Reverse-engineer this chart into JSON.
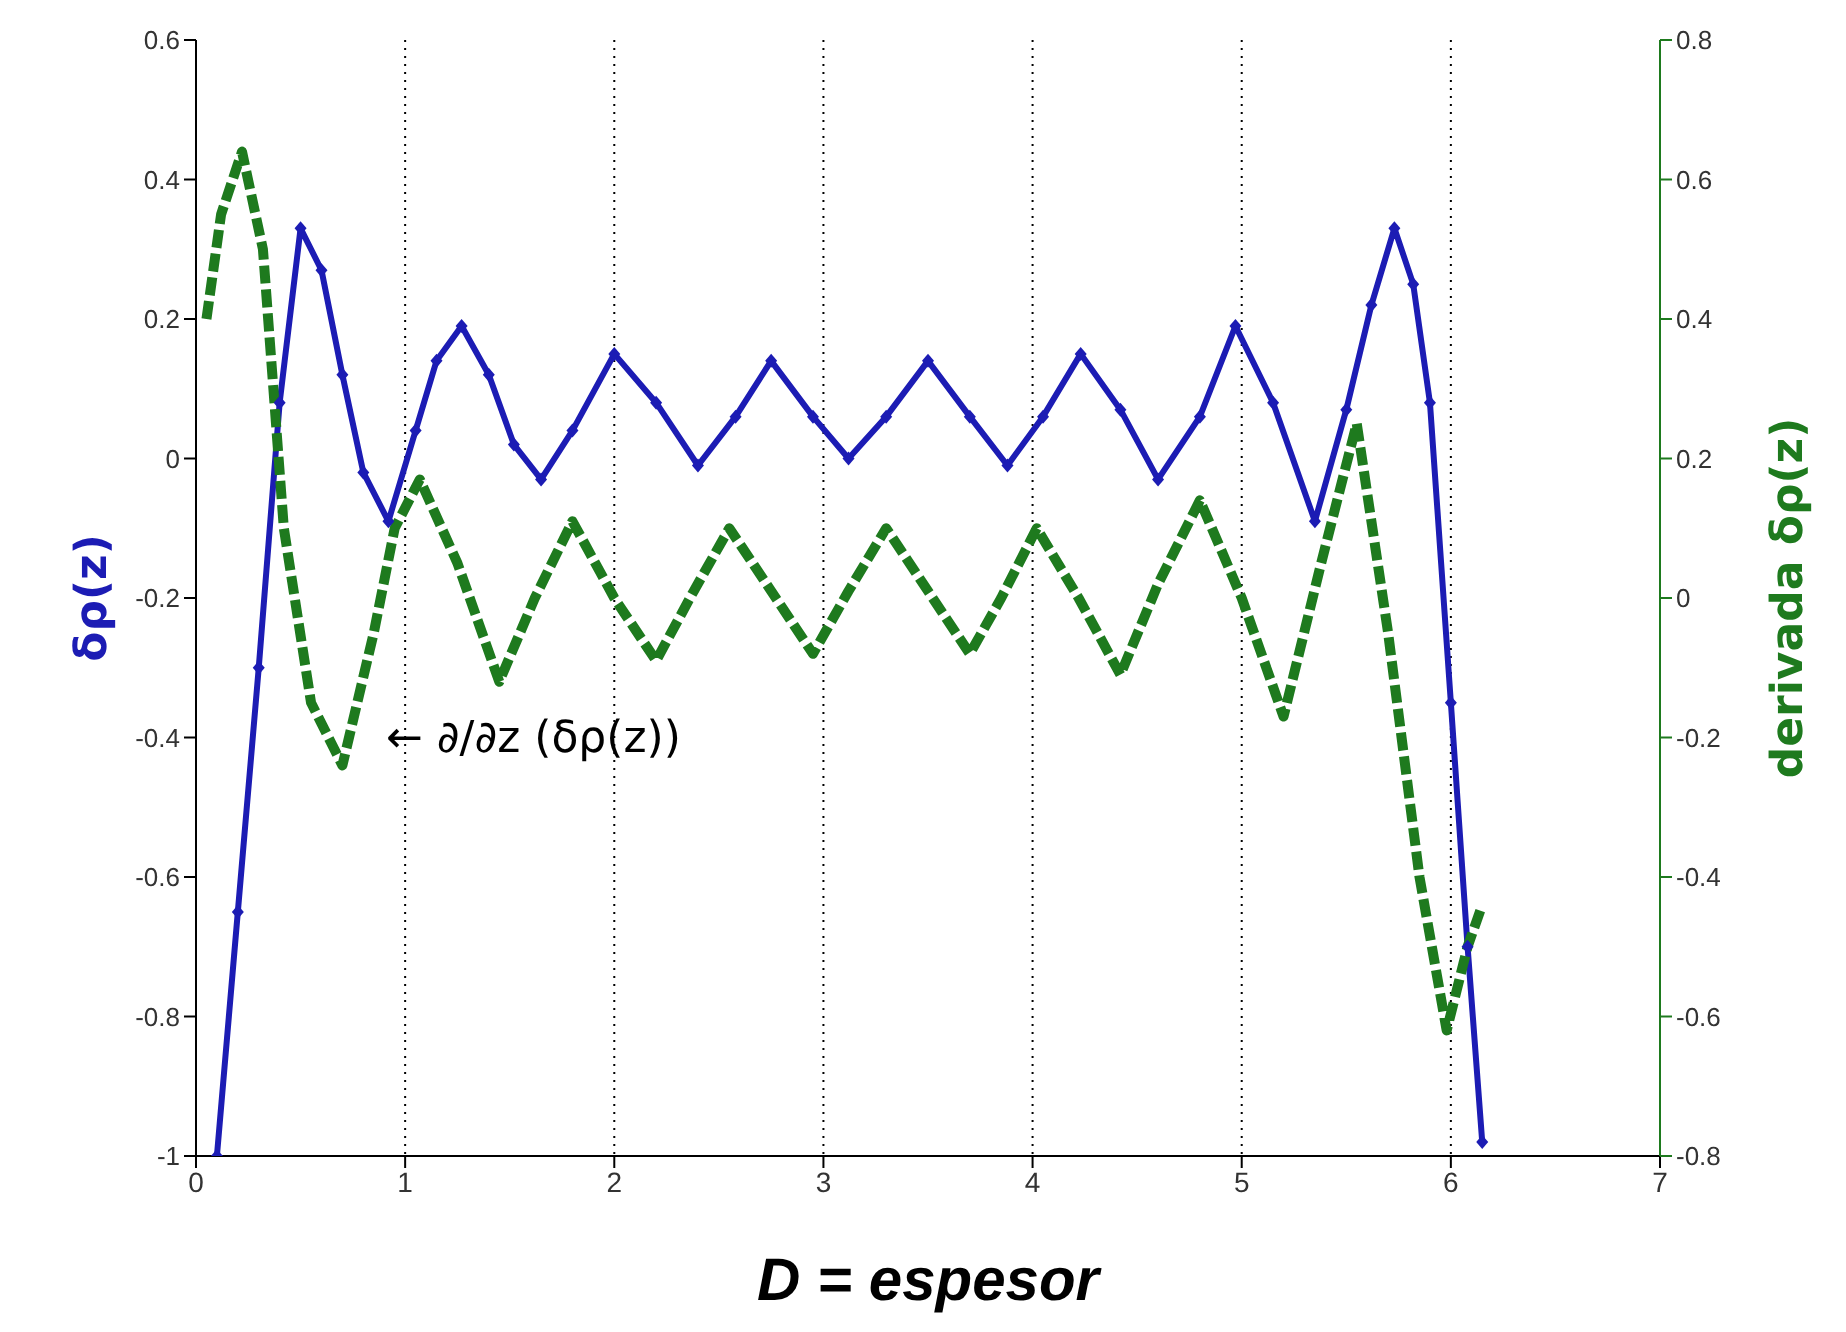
{
  "chart_data": {
    "type": "line",
    "xlabel": "D = espesor",
    "ylabel": "δρ(z)",
    "y2label": "derivada δρ(z)",
    "xlim": [
      0,
      7
    ],
    "xticks": [
      0,
      1,
      2,
      3,
      4,
      5,
      6,
      7
    ],
    "ylim": [
      -1,
      0.6
    ],
    "yticks": [
      -1,
      -0.8,
      -0.6,
      -0.4,
      -0.2,
      0,
      0.2,
      0.4,
      0.6
    ],
    "y2lim": [
      -0.8,
      0.8
    ],
    "y2ticks": [
      -0.8,
      -0.6,
      -0.4,
      -0.2,
      0,
      0.2,
      0.4,
      0.6,
      0.8
    ],
    "grid": "x",
    "annotations": [
      "← ∂/∂z (δρ(z))"
    ],
    "series": [
      {
        "color": "#1c1cb4",
        "marker": "diamond",
        "line_style": "solid",
        "x": [
          0.1,
          0.2,
          0.3,
          0.4,
          0.5,
          0.6,
          0.7,
          0.8,
          0.92,
          1.05,
          1.15,
          1.27,
          1.4,
          1.52,
          1.65,
          1.8,
          2.0,
          2.2,
          2.4,
          2.58,
          2.75,
          2.95,
          3.12,
          3.3,
          3.5,
          3.7,
          3.88,
          4.05,
          4.23,
          4.42,
          4.6,
          4.8,
          4.97,
          5.15,
          5.35,
          5.5,
          5.62,
          5.73,
          5.82,
          5.9,
          6.0,
          6.08,
          6.15
        ],
        "values": [
          -1,
          -0.65,
          -0.3,
          0.08,
          0.33,
          0.27,
          0.12,
          -0.02,
          -0.09,
          0.04,
          0.14,
          0.19,
          0.12,
          0.02,
          -0.03,
          0.04,
          0.15,
          0.08,
          -0.01,
          0.06,
          0.14,
          0.06,
          0.0,
          0.06,
          0.14,
          0.06,
          -0.01,
          0.06,
          0.15,
          0.07,
          -0.03,
          0.06,
          0.19,
          0.08,
          -0.09,
          0.07,
          0.22,
          0.33,
          0.25,
          0.08,
          -0.35,
          -0.7,
          -0.98
        ]
      },
      {
        "color": "#1e7a1e",
        "axis": "y2",
        "marker": "none",
        "line_style": "dashed",
        "x": [
          0.05,
          0.12,
          0.22,
          0.32,
          0.42,
          0.55,
          0.7,
          0.85,
          0.95,
          1.07,
          1.25,
          1.45,
          1.62,
          1.8,
          2.0,
          2.2,
          2.38,
          2.55,
          2.75,
          2.95,
          3.12,
          3.3,
          3.5,
          3.7,
          3.85,
          4.02,
          4.22,
          4.42,
          4.6,
          4.8,
          5.0,
          5.2,
          5.38,
          5.55,
          5.7,
          5.85,
          5.98,
          6.08,
          6.15
        ],
        "values": [
          0.4,
          0.55,
          0.64,
          0.5,
          0.1,
          -0.15,
          -0.24,
          -0.05,
          0.1,
          0.17,
          0.05,
          -0.12,
          0.0,
          0.11,
          0.0,
          -0.09,
          0.01,
          0.1,
          0.01,
          -0.08,
          0.01,
          0.1,
          0.01,
          -0.08,
          0.0,
          0.1,
          0.0,
          -0.11,
          0.02,
          0.14,
          0.0,
          -0.17,
          0.05,
          0.25,
          -0.05,
          -0.4,
          -0.62,
          -0.5,
          -0.44
        ]
      }
    ]
  }
}
